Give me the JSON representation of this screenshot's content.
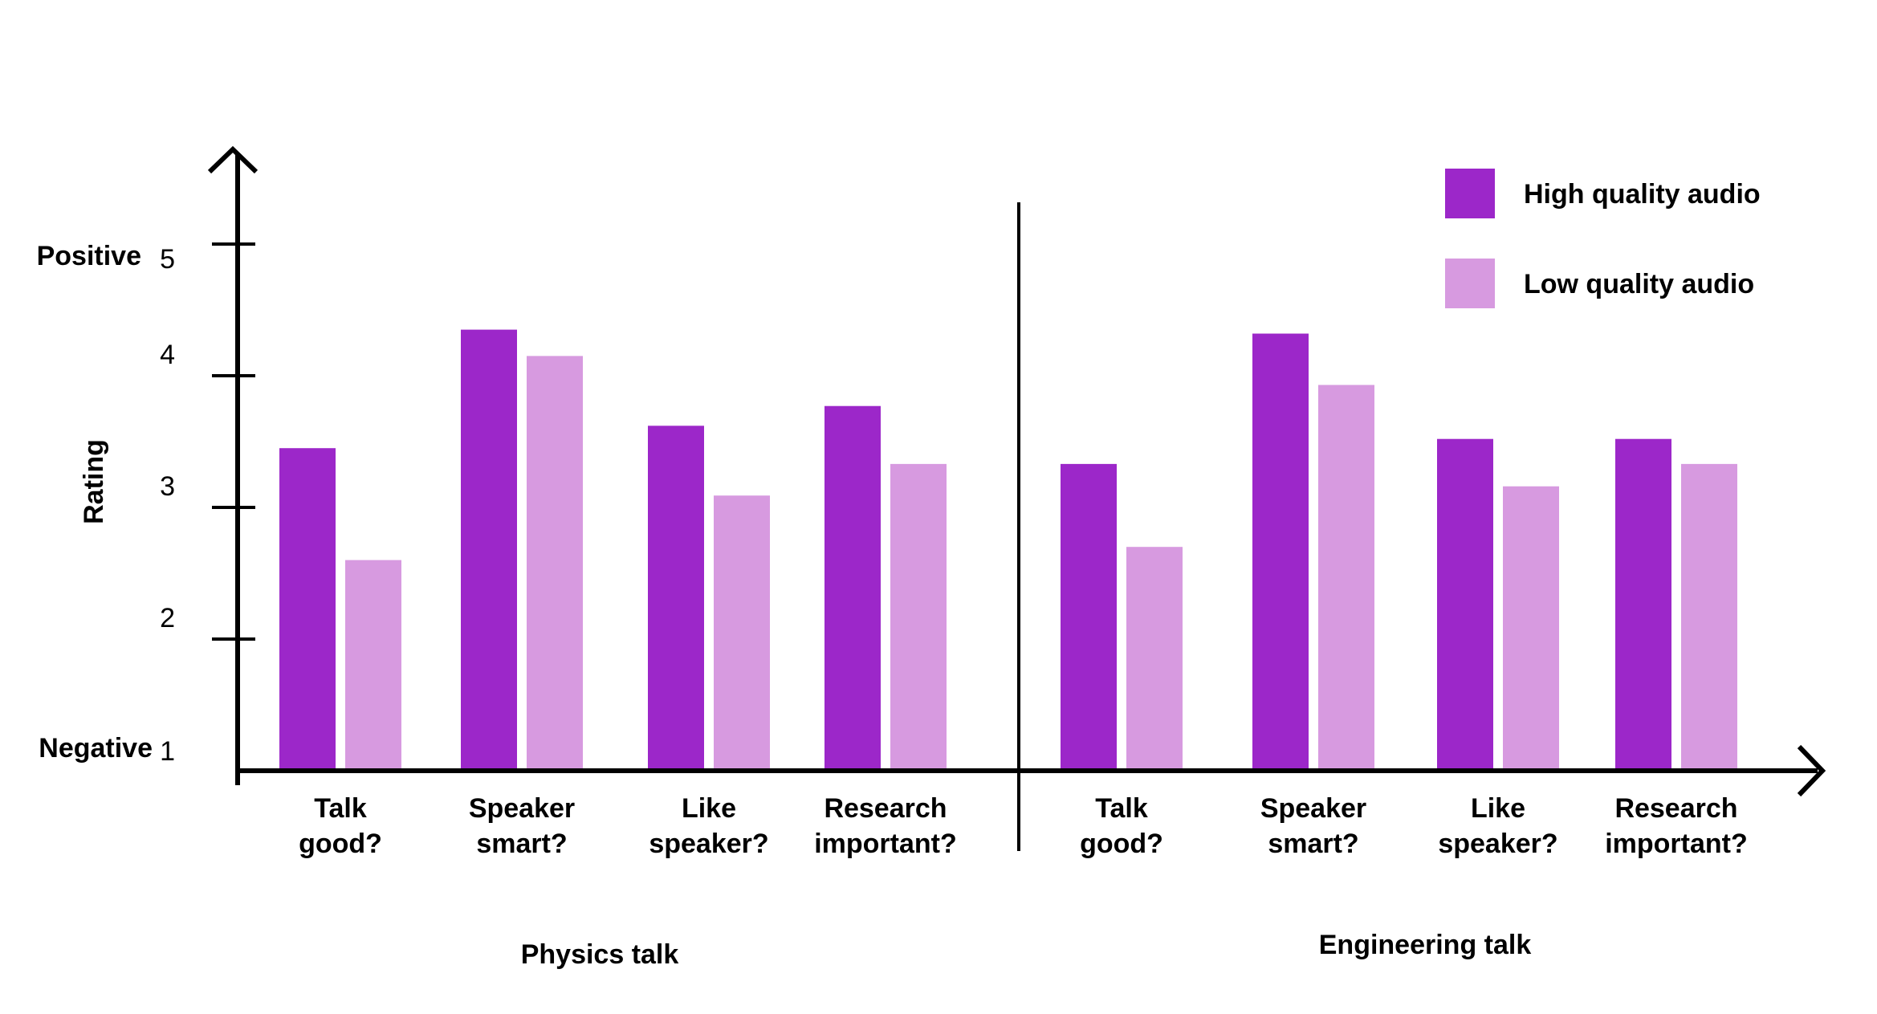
{
  "chart_data": {
    "type": "bar",
    "ylabel": "Rating",
    "ylim": [
      1,
      5
    ],
    "yticks": [
      {
        "value": 5,
        "label": "5",
        "word": "Positive"
      },
      {
        "value": 4,
        "label": "4",
        "word": ""
      },
      {
        "value": 3,
        "label": "3",
        "word": ""
      },
      {
        "value": 2,
        "label": "2",
        "word": ""
      },
      {
        "value": 1,
        "label": "1",
        "word": "Negative"
      }
    ],
    "legend_position": "top-right",
    "series": [
      {
        "name": "High quality audio",
        "color": "#9c27c9"
      },
      {
        "name": "Low quality audio",
        "color": "#d79ae0"
      }
    ],
    "groups": [
      {
        "name": "Physics talk",
        "categories": [
          {
            "label": [
              "Talk",
              "good?"
            ],
            "values": [
              3.45,
              2.6
            ]
          },
          {
            "label": [
              "Speaker",
              "smart?"
            ],
            "values": [
              4.35,
              4.15
            ]
          },
          {
            "label": [
              "Like",
              "speaker?"
            ],
            "values": [
              3.62,
              3.09
            ]
          },
          {
            "label": [
              "Research",
              "important?"
            ],
            "values": [
              3.77,
              3.33
            ]
          }
        ]
      },
      {
        "name": "Engineering talk",
        "categories": [
          {
            "label": [
              "Talk",
              "good?"
            ],
            "values": [
              3.33,
              2.7
            ]
          },
          {
            "label": [
              "Speaker",
              "smart?"
            ],
            "values": [
              4.32,
              3.93
            ]
          },
          {
            "label": [
              "Like",
              "speaker?"
            ],
            "values": [
              3.52,
              3.16
            ]
          },
          {
            "label": [
              "Research",
              "important?"
            ],
            "values": [
              3.52,
              3.33
            ]
          }
        ]
      }
    ]
  }
}
